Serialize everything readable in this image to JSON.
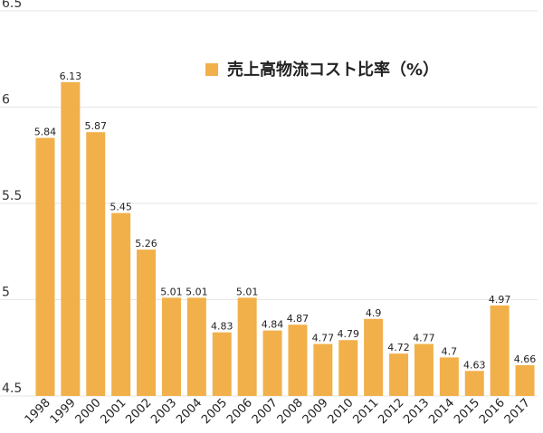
{
  "chart_data": {
    "type": "bar",
    "categories": [
      "1998",
      "1999",
      "2000",
      "2001",
      "2002",
      "2003",
      "2004",
      "2005",
      "2006",
      "2007",
      "2008",
      "2009",
      "2010",
      "2011",
      "2012",
      "2013",
      "2014",
      "2015",
      "2016",
      "2017"
    ],
    "series": [
      {
        "name": "売上高物流コスト比率（%）",
        "values": [
          5.84,
          6.13,
          5.87,
          5.45,
          5.26,
          5.01,
          5.01,
          4.83,
          5.01,
          4.84,
          4.87,
          4.77,
          4.79,
          4.9,
          4.72,
          4.77,
          4.7,
          4.63,
          4.97,
          4.66
        ],
        "color": "#F2B04A"
      }
    ],
    "ylim": [
      4.5,
      6.5
    ],
    "yticks": [
      "4.5",
      "5",
      "5.5",
      "6",
      "6.5"
    ],
    "grid": true,
    "legend_position": "top-right",
    "data_labels": [
      "5.84",
      "6.13",
      "5.87",
      "5.45",
      "5.26",
      "5.01",
      "5.01",
      "4.83",
      "5.01",
      "4.84",
      "4.87",
      "4.77",
      "4.79",
      "4.9",
      "4.72",
      "4.77",
      "4.7",
      "4.63",
      "4.97",
      "4.66"
    ]
  }
}
